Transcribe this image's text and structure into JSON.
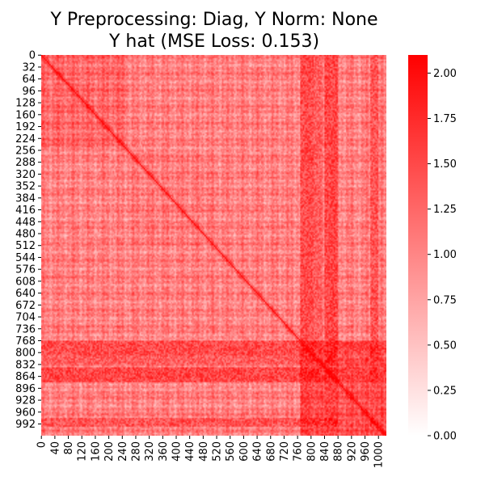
{
  "chart_data": {
    "type": "heatmap",
    "title": "Y Preprocessing: Diag, Y Norm: None",
    "subtitle": "Y hat (MSE Loss: 0.153)",
    "n": 1024,
    "y_tick_labels": [
      "0",
      "32",
      "64",
      "96",
      "128",
      "160",
      "192",
      "224",
      "256",
      "288",
      "320",
      "352",
      "384",
      "416",
      "448",
      "480",
      "512",
      "544",
      "576",
      "608",
      "640",
      "672",
      "704",
      "736",
      "768",
      "800",
      "832",
      "864",
      "896",
      "928",
      "960",
      "992"
    ],
    "x_tick_labels": [
      "0",
      "40",
      "80",
      "120",
      "160",
      "200",
      "240",
      "280",
      "320",
      "360",
      "400",
      "440",
      "480",
      "520",
      "560",
      "600",
      "640",
      "680",
      "720",
      "760",
      "800",
      "840",
      "880",
      "920",
      "960",
      "1000"
    ],
    "colorbar": {
      "vmin": 0.0,
      "vmax": 2.1,
      "ticks": [
        "0.00",
        "0.25",
        "0.50",
        "0.75",
        "1.00",
        "1.25",
        "1.50",
        "1.75",
        "2.00"
      ],
      "low_color": "#ffffff",
      "high_color": "#ff0000"
    },
    "diagonal_value": 2.1,
    "background_value": 1.05,
    "blocks": [
      {
        "range": [
          0,
          256
        ],
        "value": 1.25
      },
      {
        "range": [
          256,
          512
        ],
        "value": 1.1
      },
      {
        "range": [
          512,
          768
        ],
        "value": 1.05
      },
      {
        "range": [
          768,
          1024
        ],
        "value": 1.45
      }
    ],
    "strong_columns": [
      {
        "range": [
          768,
          808
        ],
        "value": 1.9
      },
      {
        "range": [
          808,
          832
        ],
        "value": 1.7
      },
      {
        "range": [
          840,
          880
        ],
        "value": 1.95
      },
      {
        "range": [
          976,
          1000
        ],
        "value": 1.8
      }
    ]
  }
}
